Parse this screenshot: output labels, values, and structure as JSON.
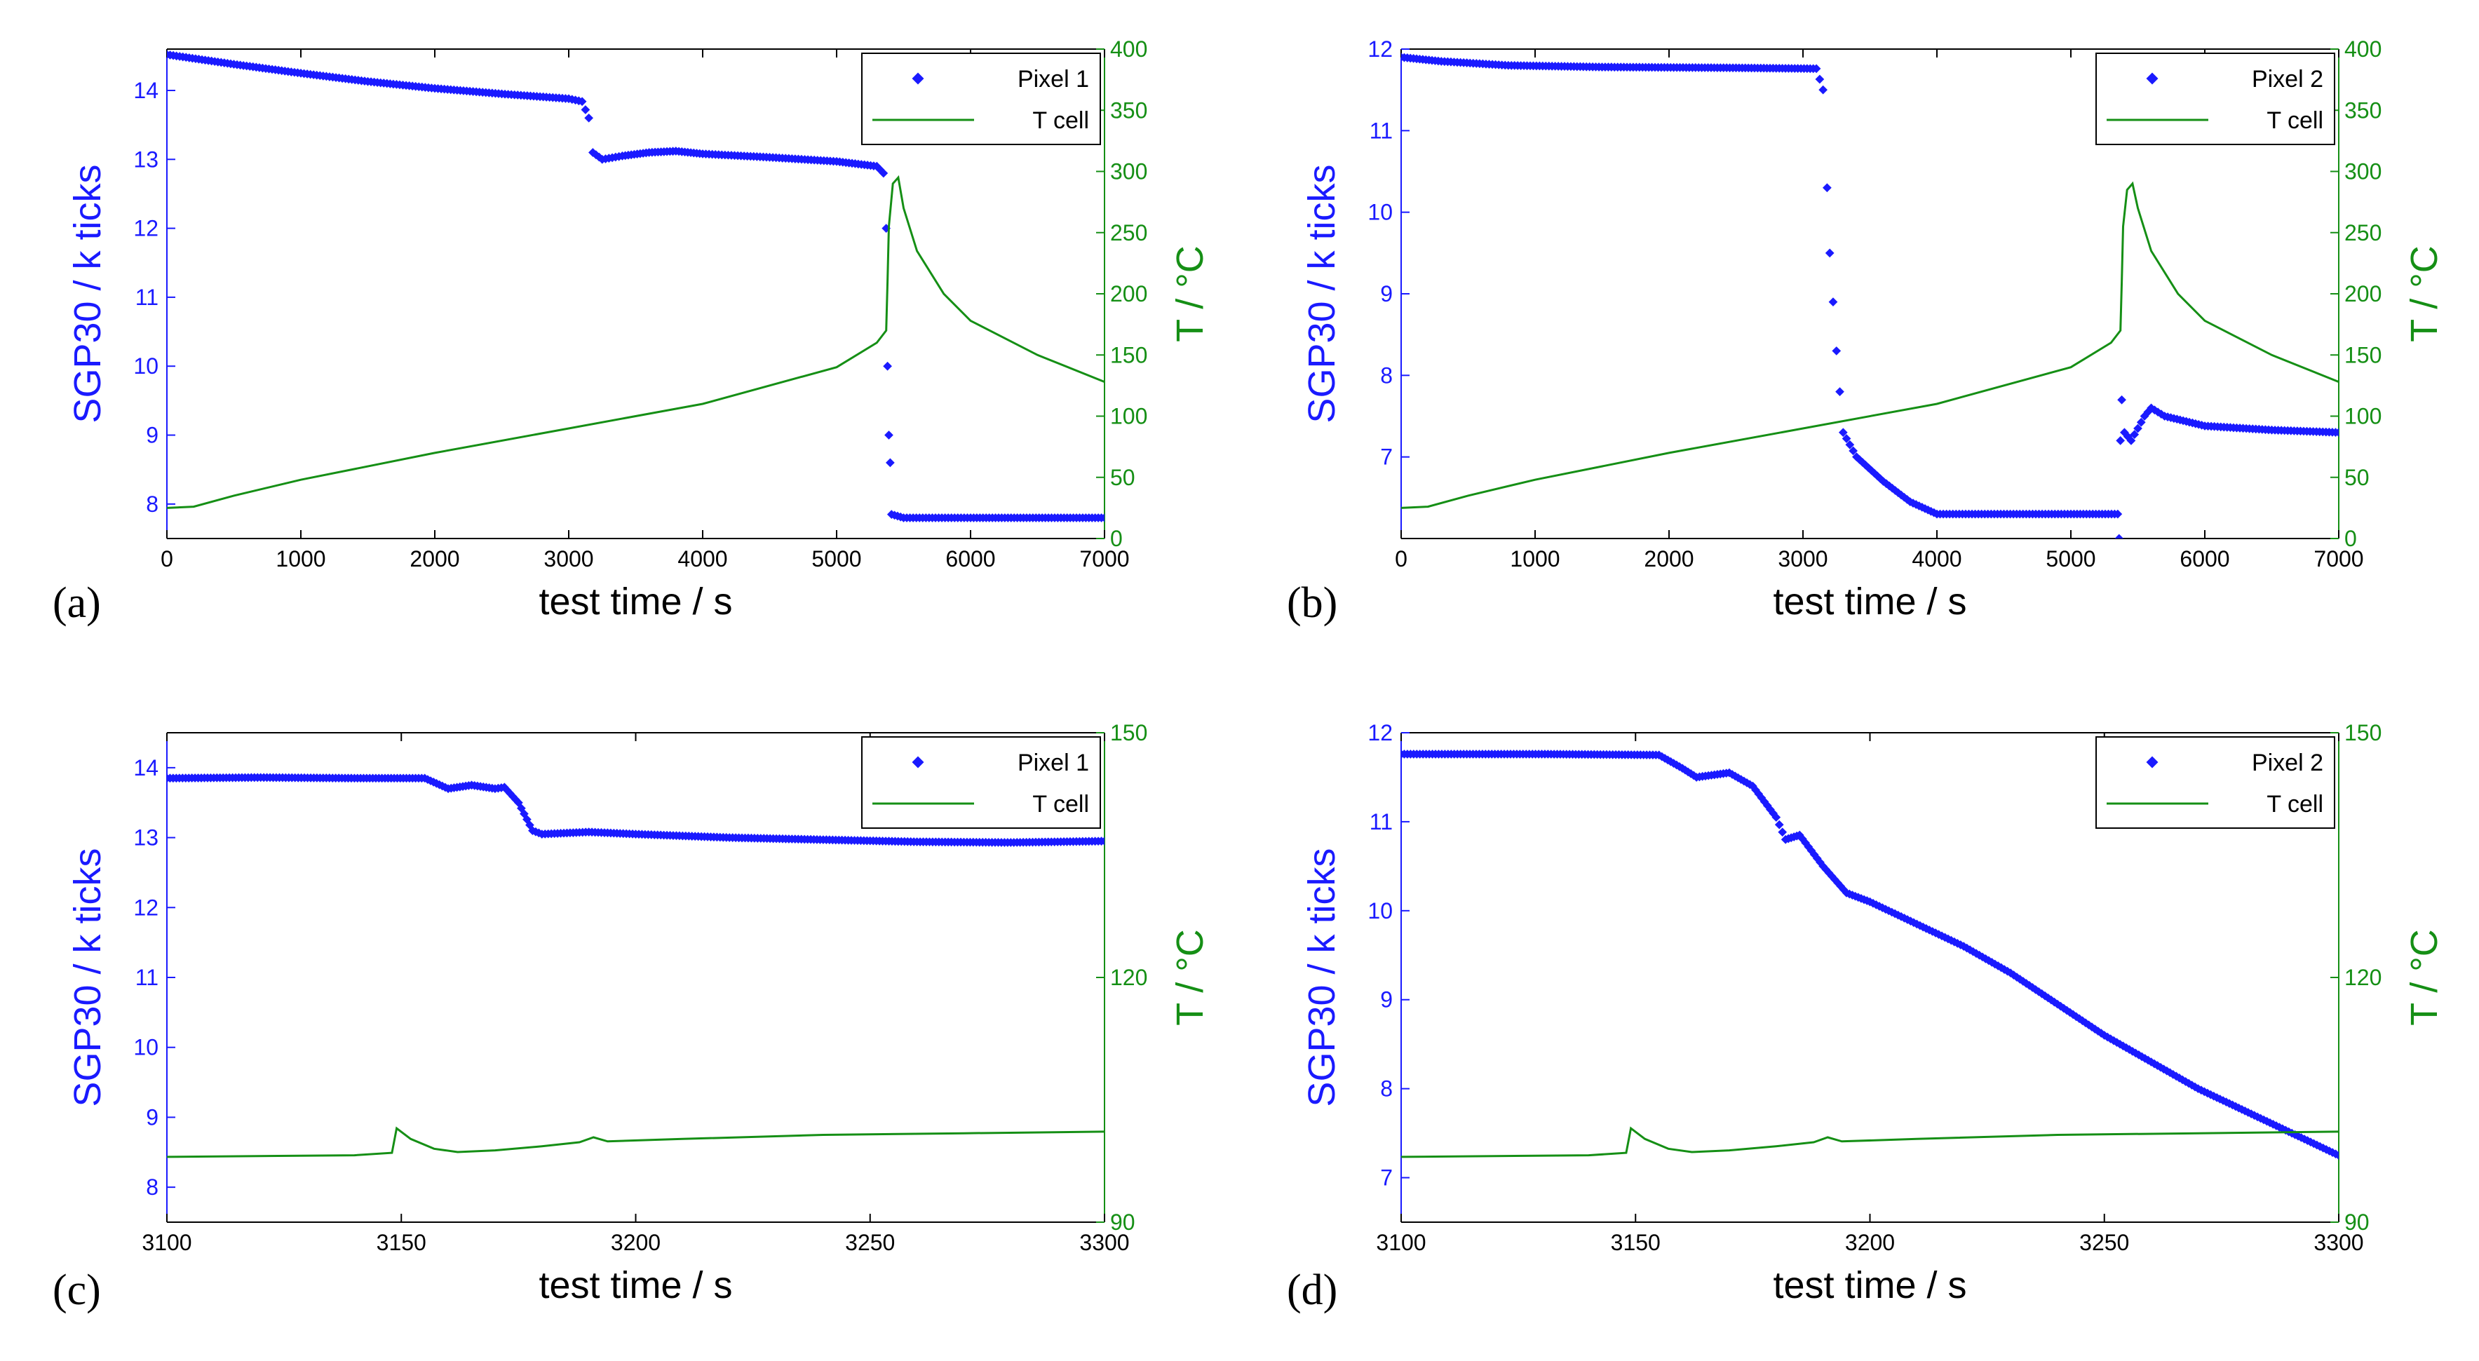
{
  "colors": {
    "pixel": "#1a1aff",
    "temp": "#158f15",
    "axis": "#000000"
  },
  "chart_data": [
    {
      "type": "line",
      "panel_label": "(a)",
      "xlabel": "test time / s",
      "ylabel": "SGP30 / k ticks",
      "y2label": "T / °C",
      "xlim": [
        0,
        7000
      ],
      "ylim": [
        7.5,
        14.6
      ],
      "y2lim": [
        0,
        400
      ],
      "x_ticks": [
        "0",
        "1000",
        "2000",
        "3000",
        "4000",
        "5000",
        "6000",
        "7000"
      ],
      "y_ticks": [
        "8",
        "9",
        "10",
        "11",
        "12",
        "13",
        "14"
      ],
      "y2_ticks": [
        "0",
        "50",
        "100",
        "150",
        "200",
        "250",
        "300",
        "350",
        "400"
      ],
      "legend": [
        "Pixel 1",
        "T cell"
      ],
      "series": [
        {
          "name": "Pixel 1",
          "axis": "left",
          "style": "markers",
          "points": [
            [
              0,
              14.52
            ],
            [
              500,
              14.38
            ],
            [
              1000,
              14.25
            ],
            [
              1500,
              14.13
            ],
            [
              2000,
              14.03
            ],
            [
              2500,
              13.95
            ],
            [
              3000,
              13.88
            ],
            [
              3100,
              13.84
            ],
            [
              3150,
              13.6
            ],
            [
              3180,
              13.1
            ],
            [
              3250,
              13.0
            ],
            [
              3400,
              13.05
            ],
            [
              3600,
              13.1
            ],
            [
              3800,
              13.12
            ],
            [
              4000,
              13.08
            ],
            [
              4500,
              13.03
            ],
            [
              5000,
              12.97
            ],
            [
              5300,
              12.9
            ],
            [
              5350,
              12.8
            ],
            [
              5370,
              12.0
            ],
            [
              5380,
              10.0
            ],
            [
              5390,
              9.0
            ],
            [
              5400,
              8.6
            ],
            [
              5410,
              7.85
            ],
            [
              5500,
              7.8
            ],
            [
              6000,
              7.8
            ],
            [
              7000,
              7.8
            ]
          ]
        },
        {
          "name": "T cell",
          "axis": "right",
          "style": "line",
          "points": [
            [
              0,
              25
            ],
            [
              200,
              26
            ],
            [
              500,
              35
            ],
            [
              1000,
              48
            ],
            [
              2000,
              70
            ],
            [
              3000,
              90
            ],
            [
              4000,
              110
            ],
            [
              5000,
              140
            ],
            [
              5300,
              160
            ],
            [
              5370,
              170
            ],
            [
              5380,
              210
            ],
            [
              5390,
              255
            ],
            [
              5420,
              290
            ],
            [
              5460,
              295
            ],
            [
              5500,
              270
            ],
            [
              5600,
              235
            ],
            [
              5800,
              200
            ],
            [
              6000,
              178
            ],
            [
              6500,
              150
            ],
            [
              7000,
              128
            ]
          ]
        }
      ]
    },
    {
      "type": "line",
      "panel_label": "(b)",
      "xlabel": "test time / s",
      "ylabel": "SGP30 / k ticks",
      "y2label": "T / °C",
      "xlim": [
        0,
        7000
      ],
      "ylim": [
        6.0,
        12.0
      ],
      "y2lim": [
        0,
        400
      ],
      "x_ticks": [
        "0",
        "1000",
        "2000",
        "3000",
        "4000",
        "5000",
        "6000",
        "7000"
      ],
      "y_ticks": [
        "7",
        "8",
        "9",
        "10",
        "11",
        "12"
      ],
      "y2_ticks": [
        "0",
        "50",
        "100",
        "150",
        "200",
        "250",
        "300",
        "350",
        "400"
      ],
      "legend": [
        "Pixel 2",
        "T cell"
      ],
      "series": [
        {
          "name": "Pixel 2",
          "axis": "left",
          "style": "markers",
          "points": [
            [
              0,
              11.9
            ],
            [
              300,
              11.85
            ],
            [
              800,
              11.8
            ],
            [
              1500,
              11.78
            ],
            [
              2500,
              11.77
            ],
            [
              3100,
              11.76
            ],
            [
              3150,
              11.5
            ],
            [
              3180,
              10.3
            ],
            [
              3200,
              9.5
            ],
            [
              3250,
              8.3
            ],
            [
              3300,
              7.3
            ],
            [
              3400,
              7.0
            ],
            [
              3600,
              6.7
            ],
            [
              3800,
              6.45
            ],
            [
              4000,
              6.3
            ],
            [
              4500,
              6.3
            ],
            [
              5000,
              6.3
            ],
            [
              5350,
              6.3
            ],
            [
              5360,
              6.0
            ],
            [
              5370,
              7.2
            ],
            [
              5380,
              7.7
            ],
            [
              5400,
              7.3
            ],
            [
              5450,
              7.2
            ],
            [
              5550,
              7.5
            ],
            [
              5600,
              7.6
            ],
            [
              5700,
              7.5
            ],
            [
              6000,
              7.38
            ],
            [
              6500,
              7.33
            ],
            [
              7000,
              7.3
            ]
          ]
        },
        {
          "name": "T cell",
          "axis": "right",
          "style": "line",
          "points": [
            [
              0,
              25
            ],
            [
              200,
              26
            ],
            [
              500,
              35
            ],
            [
              1000,
              48
            ],
            [
              2000,
              70
            ],
            [
              3000,
              90
            ],
            [
              4000,
              110
            ],
            [
              5000,
              140
            ],
            [
              5300,
              160
            ],
            [
              5370,
              170
            ],
            [
              5380,
              210
            ],
            [
              5390,
              255
            ],
            [
              5420,
              285
            ],
            [
              5460,
              290
            ],
            [
              5500,
              270
            ],
            [
              5600,
              235
            ],
            [
              5800,
              200
            ],
            [
              6000,
              178
            ],
            [
              6500,
              150
            ],
            [
              7000,
              128
            ]
          ]
        }
      ]
    },
    {
      "type": "line",
      "panel_label": "(c)",
      "xlabel": "test time / s",
      "ylabel": "SGP30 / k ticks",
      "y2label": "T / °C",
      "xlim": [
        3100,
        3300
      ],
      "ylim": [
        7.5,
        14.5
      ],
      "y2lim": [
        90,
        150
      ],
      "x_ticks": [
        "3100",
        "3150",
        "3200",
        "3250",
        "3300"
      ],
      "y_ticks": [
        "8",
        "9",
        "10",
        "11",
        "12",
        "13",
        "14"
      ],
      "y2_ticks": [
        "90",
        "120",
        "150"
      ],
      "legend": [
        "Pixel 1",
        "T cell"
      ],
      "series": [
        {
          "name": "Pixel 1",
          "axis": "left",
          "style": "markers",
          "points": [
            [
              3100,
              13.85
            ],
            [
              3120,
              13.86
            ],
            [
              3140,
              13.85
            ],
            [
              3155,
              13.85
            ],
            [
              3160,
              13.7
            ],
            [
              3165,
              13.75
            ],
            [
              3170,
              13.7
            ],
            [
              3172,
              13.72
            ],
            [
              3175,
              13.5
            ],
            [
              3178,
              13.1
            ],
            [
              3180,
              13.05
            ],
            [
              3190,
              13.08
            ],
            [
              3200,
              13.05
            ],
            [
              3220,
              13.0
            ],
            [
              3240,
              12.97
            ],
            [
              3260,
              12.94
            ],
            [
              3280,
              12.93
            ],
            [
              3300,
              12.95
            ]
          ]
        },
        {
          "name": "T cell",
          "axis": "right",
          "style": "line",
          "points": [
            [
              3100,
              98
            ],
            [
              3140,
              98.2
            ],
            [
              3148,
              98.5
            ],
            [
              3149,
              101.5
            ],
            [
              3152,
              100.2
            ],
            [
              3157,
              99
            ],
            [
              3162,
              98.6
            ],
            [
              3170,
              98.8
            ],
            [
              3180,
              99.3
            ],
            [
              3188,
              99.8
            ],
            [
              3191,
              100.4
            ],
            [
              3194,
              99.9
            ],
            [
              3210,
              100.2
            ],
            [
              3240,
              100.7
            ],
            [
              3270,
              100.9
            ],
            [
              3300,
              101.1
            ]
          ]
        }
      ]
    },
    {
      "type": "line",
      "panel_label": "(d)",
      "xlabel": "test time / s",
      "ylabel": "SGP30 / k ticks",
      "y2label": "T / °C",
      "xlim": [
        3100,
        3300
      ],
      "ylim": [
        6.5,
        12.0
      ],
      "y2lim": [
        90,
        150
      ],
      "x_ticks": [
        "3100",
        "3150",
        "3200",
        "3250",
        "3300"
      ],
      "y_ticks": [
        "7",
        "8",
        "9",
        "10",
        "11",
        "12"
      ],
      "y2_ticks": [
        "90",
        "120",
        "150"
      ],
      "legend": [
        "Pixel 2",
        "T cell"
      ],
      "series": [
        {
          "name": "Pixel 2",
          "axis": "left",
          "style": "markers",
          "points": [
            [
              3100,
              11.76
            ],
            [
              3130,
              11.76
            ],
            [
              3155,
              11.75
            ],
            [
              3160,
              11.6
            ],
            [
              3163,
              11.5
            ],
            [
              3170,
              11.55
            ],
            [
              3175,
              11.4
            ],
            [
              3180,
              11.05
            ],
            [
              3182,
              10.8
            ],
            [
              3185,
              10.85
            ],
            [
              3190,
              10.5
            ],
            [
              3195,
              10.2
            ],
            [
              3200,
              10.1
            ],
            [
              3210,
              9.85
            ],
            [
              3220,
              9.6
            ],
            [
              3230,
              9.3
            ],
            [
              3240,
              8.95
            ],
            [
              3250,
              8.6
            ],
            [
              3260,
              8.3
            ],
            [
              3270,
              8.0
            ],
            [
              3280,
              7.75
            ],
            [
              3290,
              7.5
            ],
            [
              3300,
              7.25
            ]
          ]
        },
        {
          "name": "T cell",
          "axis": "right",
          "style": "line",
          "points": [
            [
              3100,
              98
            ],
            [
              3140,
              98.2
            ],
            [
              3148,
              98.5
            ],
            [
              3149,
              101.5
            ],
            [
              3152,
              100.2
            ],
            [
              3157,
              99
            ],
            [
              3162,
              98.6
            ],
            [
              3170,
              98.8
            ],
            [
              3180,
              99.3
            ],
            [
              3188,
              99.8
            ],
            [
              3191,
              100.4
            ],
            [
              3194,
              99.9
            ],
            [
              3210,
              100.2
            ],
            [
              3240,
              100.7
            ],
            [
              3270,
              100.9
            ],
            [
              3300,
              101.1
            ]
          ]
        }
      ]
    }
  ]
}
